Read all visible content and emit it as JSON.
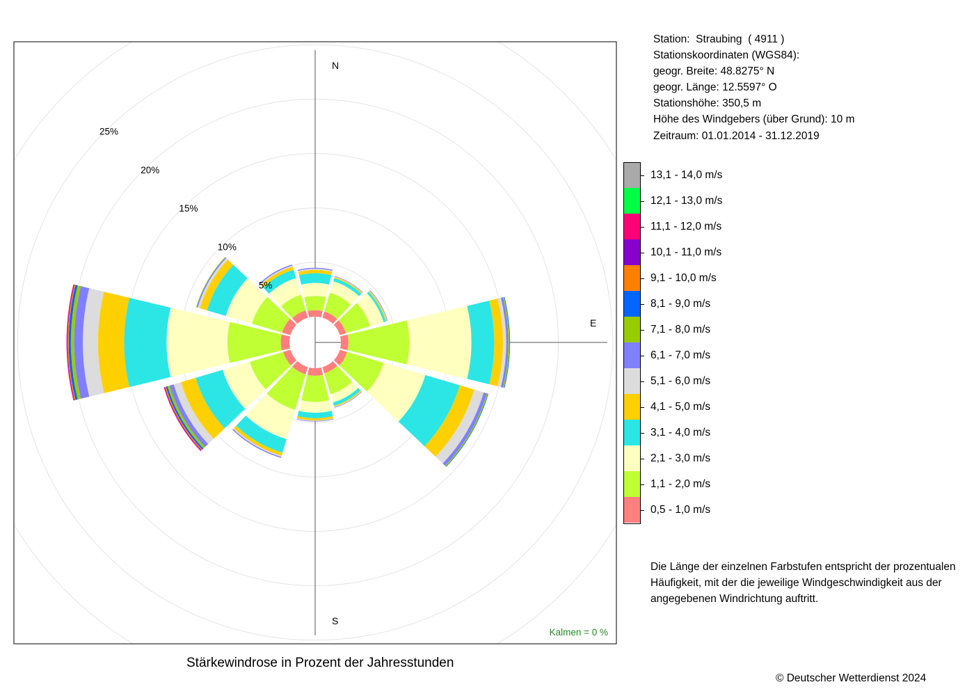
{
  "station": {
    "lines": [
      "Station:  Straubing  ( 4911 )",
      "Stationskoordinaten (WGS84):",
      "geogr. Breite: 48.8275° N",
      "geogr. Länge: 12.5597° O",
      "Stationshöhe: 350,5 m",
      "Höhe des Windgebers (über Grund): 10 m",
      "Zeitraum: 01.01.2014 - 31.12.2019"
    ]
  },
  "note": "Die Länge der einzelnen Farbstufen entspricht der prozentualen Häufigkeit, mit der die jeweilige Windgeschwindigkeit aus der angegebenen Windrichtung auftritt.",
  "copyright": "© Deutscher Wetterdienst  2024",
  "chart_data": {
    "type": "wind-rose",
    "title": "Stärkewindrose in Prozent der Jahresstunden",
    "calm_label": "Kalmen  =  0 %",
    "radial_ticks": [
      "5%",
      "10%",
      "15%",
      "20%",
      "25%"
    ],
    "radial_values": [
      5,
      10,
      15,
      20,
      25
    ],
    "compass_labels": {
      "N": "N",
      "E": "E",
      "S": "S"
    },
    "speed_classes": [
      {
        "label": "0,5 - 1,0 m/s",
        "color": "#ff7f7f"
      },
      {
        "label": "1,1 - 2,0 m/s",
        "color": "#bfff33"
      },
      {
        "label": "2,1 - 3,0 m/s",
        "color": "#ffffbf"
      },
      {
        "label": "3,1 - 4,0 m/s",
        "color": "#2ce6e6"
      },
      {
        "label": "4,1 - 5,0 m/s",
        "color": "#ffd000"
      },
      {
        "label": "5,1 - 6,0 m/s",
        "color": "#dcdcdc"
      },
      {
        "label": "6,1 - 7,0 m/s",
        "color": "#8080ff"
      },
      {
        "label": "7,1 - 8,0 m/s",
        "color": "#99cc00"
      },
      {
        "label": "8,1 - 9,0 m/s",
        "color": "#0066ff"
      },
      {
        "label": "9,1 - 10,0 m/s",
        "color": "#ff8000"
      },
      {
        "label": "10,1 - 11,0 m/s",
        "color": "#8800cc"
      },
      {
        "label": "11,1 - 12,0 m/s",
        "color": "#ff0077"
      },
      {
        "label": "12,1 - 13,0 m/s",
        "color": "#00ff44"
      },
      {
        "label": "13,1 - 14,0 m/s",
        "color": "#aaaaaa"
      }
    ],
    "directions": [
      {
        "deg": 0,
        "values": [
          0.6,
          1.3,
          1.2,
          0.9,
          0.3,
          0.1,
          0.1,
          0,
          0,
          0,
          0,
          0,
          0,
          0
        ]
      },
      {
        "deg": 30,
        "values": [
          0.6,
          1.8,
          1.1,
          0.3,
          0.1,
          0.05,
          0.05,
          0,
          0,
          0,
          0,
          0,
          0,
          0
        ]
      },
      {
        "deg": 60,
        "values": [
          0.6,
          2.3,
          1.3,
          0.2,
          0.1,
          0.05,
          0.05,
          0,
          0,
          0,
          0,
          0,
          0,
          0
        ]
      },
      {
        "deg": 90,
        "values": [
          0.7,
          5.6,
          5.7,
          2.1,
          0.8,
          0.3,
          0.2,
          0.1,
          0.05,
          0,
          0,
          0,
          0,
          0
        ]
      },
      {
        "deg": 120,
        "values": [
          0.7,
          3.5,
          4.0,
          3.3,
          1.4,
          0.9,
          0.3,
          0.1,
          0.05,
          0,
          0,
          0,
          0,
          0
        ]
      },
      {
        "deg": 150,
        "values": [
          0.6,
          2.0,
          0.8,
          0.3,
          0.1,
          0.05,
          0.05,
          0,
          0,
          0,
          0,
          0,
          0,
          0
        ]
      },
      {
        "deg": 180,
        "values": [
          0.7,
          2.4,
          1.0,
          0.5,
          0.2,
          0.05,
          0.05,
          0,
          0,
          0,
          0,
          0,
          0,
          0
        ]
      },
      {
        "deg": 210,
        "values": [
          0.7,
          3.4,
          2.8,
          1.3,
          0.3,
          0.1,
          0.1,
          0,
          0,
          0,
          0,
          0,
          0,
          0
        ]
      },
      {
        "deg": 240,
        "values": [
          0.7,
          3.2,
          2.6,
          2.6,
          1.4,
          0.7,
          0.4,
          0.2,
          0.15,
          0.1,
          0.05,
          0.05,
          0,
          0
        ]
      },
      {
        "deg": 270,
        "values": [
          0.8,
          4.9,
          5.6,
          3.9,
          2.4,
          1.4,
          0.8,
          0.3,
          0.2,
          0.1,
          0.05,
          0.05,
          0,
          0
        ]
      },
      {
        "deg": 300,
        "values": [
          0.8,
          2.9,
          2.5,
          1.8,
          0.7,
          0.2,
          0.1,
          0.05,
          0,
          0,
          0,
          0,
          0,
          0
        ]
      },
      {
        "deg": 330,
        "values": [
          0.7,
          1.5,
          1.6,
          0.8,
          0.3,
          0.1,
          0.1,
          0,
          0,
          0,
          0,
          0,
          0,
          0
        ]
      }
    ]
  }
}
